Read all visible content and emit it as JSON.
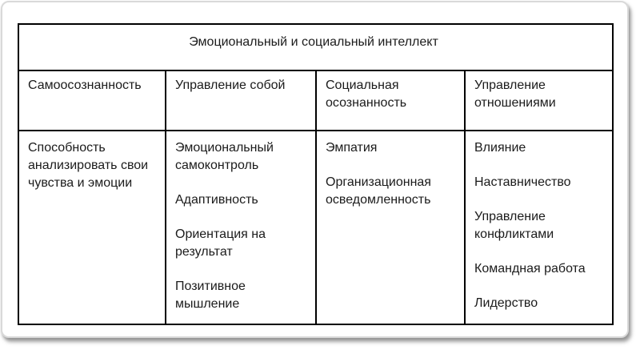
{
  "table": {
    "title": "Эмоциональный и социальный интеллект",
    "columns": [
      {
        "header": "Самоосознанность",
        "items": [
          "Способность анализировать свои чувства и эмоции"
        ]
      },
      {
        "header": "Управление собой",
        "items": [
          "Эмоциональный самоконтроль",
          "Адаптивность",
          "Ориентация на результат",
          "Позитивное мышление"
        ]
      },
      {
        "header": "Социальная осознанность",
        "items": [
          "Эмпатия",
          "Организационная осведомленность"
        ]
      },
      {
        "header": "Управление отношениями",
        "items": [
          "Влияние",
          "Наставничество",
          "Управление конфликтами",
          "Командная работа",
          "Лидерство"
        ]
      }
    ]
  },
  "colors": {
    "table_border": "#000000",
    "text": "#1b1b1b",
    "frame_border": "#d9d9d9",
    "background": "#ffffff"
  }
}
